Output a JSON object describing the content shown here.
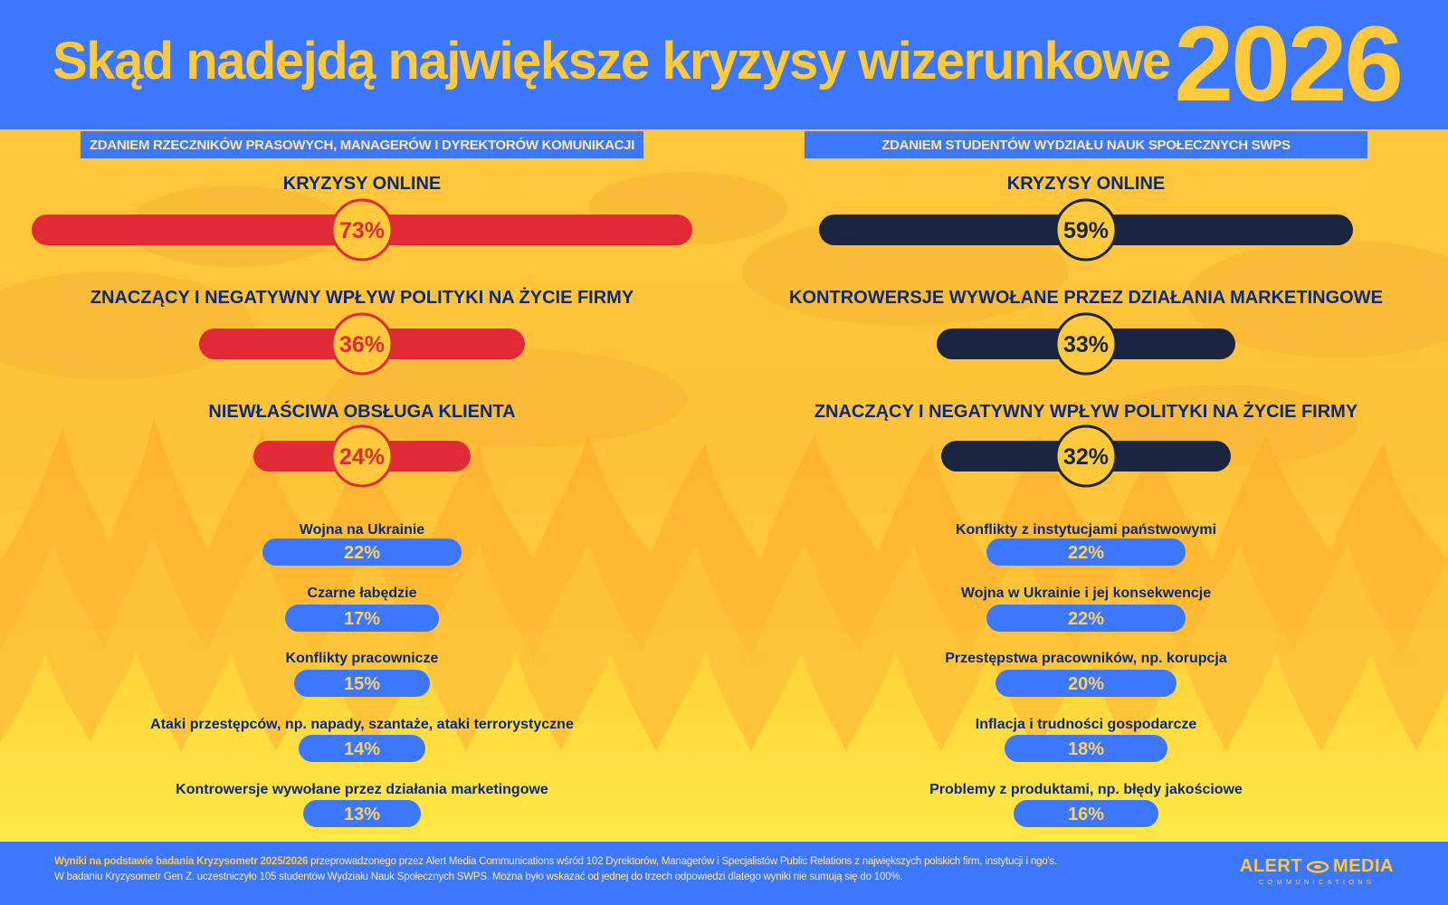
{
  "header": {
    "title": "Skąd nadejdą największe kryzysy wizerunkowe",
    "year": "2026"
  },
  "columns": {
    "left_label": "ZDANIEM RZECZNIKÓW PRASOWYCH, MANAGERÓW I DYREKTORÓW KOMUNIKACJI",
    "right_label": "ZDANIEM STUDENTÓW WYDZIAŁU NAUK SPOŁECZNYCH SWPS"
  },
  "colors": {
    "header_blue": "#3b78ff",
    "yellow": "#ffc93c",
    "navy": "#0b2a7a",
    "red": "#e02a36",
    "dark": "#1c2540",
    "small_bar": "#3b78ff"
  },
  "chart_data": [
    {
      "type": "bar",
      "series_name": "ZDANIEM RZECZNIKÓW PRASOWYCH, MANAGERÓW I DYREKTORÓW KOMUNIKACJI",
      "categories": [
        "KRYZYSY ONLINE",
        "ZNACZĄCY I NEGATYWNY WPŁYW POLITYKI NA ŻYCIE FIRMY",
        "NIEWŁAŚCIWA OBSŁUGA KLIENTA",
        "Wojna na Ukrainie",
        "Czarne łabędzie",
        "Konflikty pracownicze",
        "Ataki przestępców, np. napady, szantaże, ataki terrorystyczne",
        "Kontrowersje wywołane przez działania marketingowe"
      ],
      "values": [
        73,
        36,
        24,
        22,
        17,
        15,
        14,
        13
      ],
      "labels": [
        "73%",
        "36%",
        "24%",
        "22%",
        "17%",
        "15%",
        "14%",
        "13%"
      ]
    },
    {
      "type": "bar",
      "series_name": "ZDANIEM STUDENTÓW WYDZIAŁU NAUK SPOŁECZNYCH SWPS",
      "categories": [
        "KRYZYSY ONLINE",
        "KONTROWERSJE WYWOŁANE PRZEZ DZIAŁANIA MARKETINGOWE",
        "ZNACZĄCY I NEGATYWNY WPŁYW POLITYKI NA ŻYCIE FIRMY",
        "Konflikty z instytucjami państwowymi",
        "Wojna w Ukrainie i jej konsekwencje",
        "Przestępstwa pracowników, np. korupcja",
        "Inflacja i trudności gospodarcze",
        "Problemy z produktami, np. błędy jakościowe"
      ],
      "values": [
        59,
        33,
        32,
        22,
        22,
        20,
        18,
        16
      ],
      "labels": [
        "59%",
        "33%",
        "32%",
        "22%",
        "22%",
        "20%",
        "18%",
        "16%"
      ]
    }
  ],
  "footer": {
    "line1_bold": "Wyniki na podstawie badania Kryzysometr 2025/2026",
    "line1_rest": " przeprowadzonego przez Alert Media Communications wśród 102 Dyrektorów, Managerów i Specjalistów Public Relations z największych polskich firm, instytucji i ngo's.",
    "line2": "W badaniu Kryzysometr Gen Z. uczestniczyło 105 studentów Wydziału Nauk Społecznych SWPS. Można było wskazać od jednej do trzech odpowiedzi dlatego wyniki nie sumują się do 100%.",
    "logo_main_left": "ALERT",
    "logo_main_right": "MEDIA",
    "logo_sub": "COMMUNICATIONS"
  }
}
